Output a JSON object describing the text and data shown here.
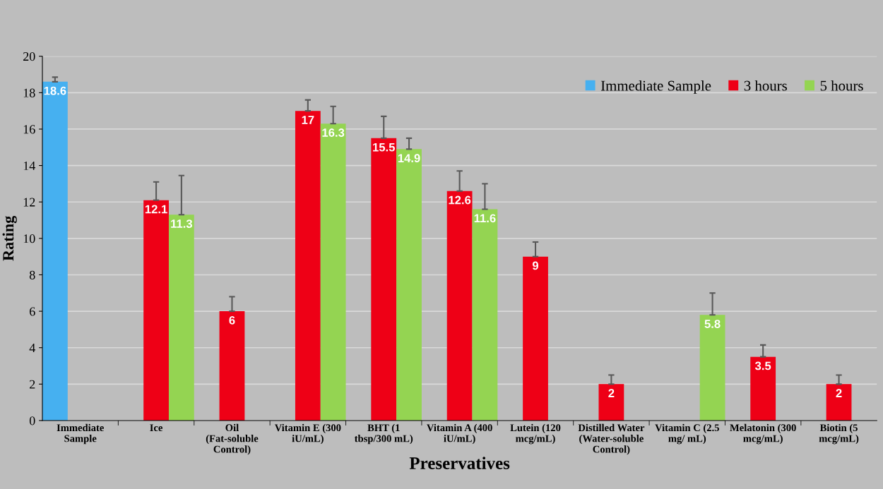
{
  "chart_data": {
    "type": "bar",
    "xlabel": "Preservatives",
    "ylabel": "Rating",
    "categories": [
      "Immediate\nSample",
      "Ice",
      "Oil\n(Fat-soluble\nControl)",
      "Vitamin E (300\niU/mL)",
      "BHT (1\ntbsp/300 mL)",
      "Vitamin A (400\niU/mL)",
      "Lutein (120\nmcg/mL)",
      "Distilled Water\n(Water-soluble\nControl)",
      "Vitamin C (2.5\nmg/ mL)",
      "Melatonin (300\nmcg/mL)",
      "Biotin (5\nmcg/mL)"
    ],
    "series": [
      {
        "name": "Immediate Sample",
        "color": "#46b0f0",
        "values": [
          18.6,
          null,
          null,
          null,
          null,
          null,
          null,
          null,
          null,
          null,
          null
        ],
        "errors": [
          [
            18.6,
            18.85
          ],
          null,
          null,
          null,
          null,
          null,
          null,
          null,
          null,
          null,
          null
        ]
      },
      {
        "name": "3 hours",
        "color": "#ee0016",
        "values": [
          null,
          12.1,
          6,
          17,
          15.5,
          12.6,
          9,
          2,
          null,
          3.5,
          2
        ],
        "errors": [
          null,
          [
            12.1,
            13.1
          ],
          [
            6,
            6.8
          ],
          [
            17,
            17.6
          ],
          [
            15.5,
            16.7
          ],
          [
            12.6,
            13.7
          ],
          [
            9,
            9.8
          ],
          [
            2,
            2.5
          ],
          null,
          [
            3.5,
            4.15
          ],
          [
            2,
            2.5
          ]
        ]
      },
      {
        "name": "5 hours",
        "color": "#94d452",
        "values": [
          null,
          11.3,
          null,
          16.3,
          14.9,
          11.6,
          null,
          null,
          5.8,
          null,
          null
        ],
        "errors": [
          null,
          [
            11.3,
            13.45
          ],
          null,
          [
            16.3,
            17.25
          ],
          [
            14.9,
            15.5
          ],
          [
            11.6,
            13.0
          ],
          null,
          null,
          [
            5.8,
            7.0
          ],
          null,
          null
        ]
      }
    ],
    "ylim": [
      0,
      20
    ],
    "yticks": [
      0,
      2,
      4,
      6,
      8,
      10,
      12,
      14,
      16,
      18,
      20
    ],
    "grid": "y",
    "legend": "top right",
    "data_labels": true
  }
}
